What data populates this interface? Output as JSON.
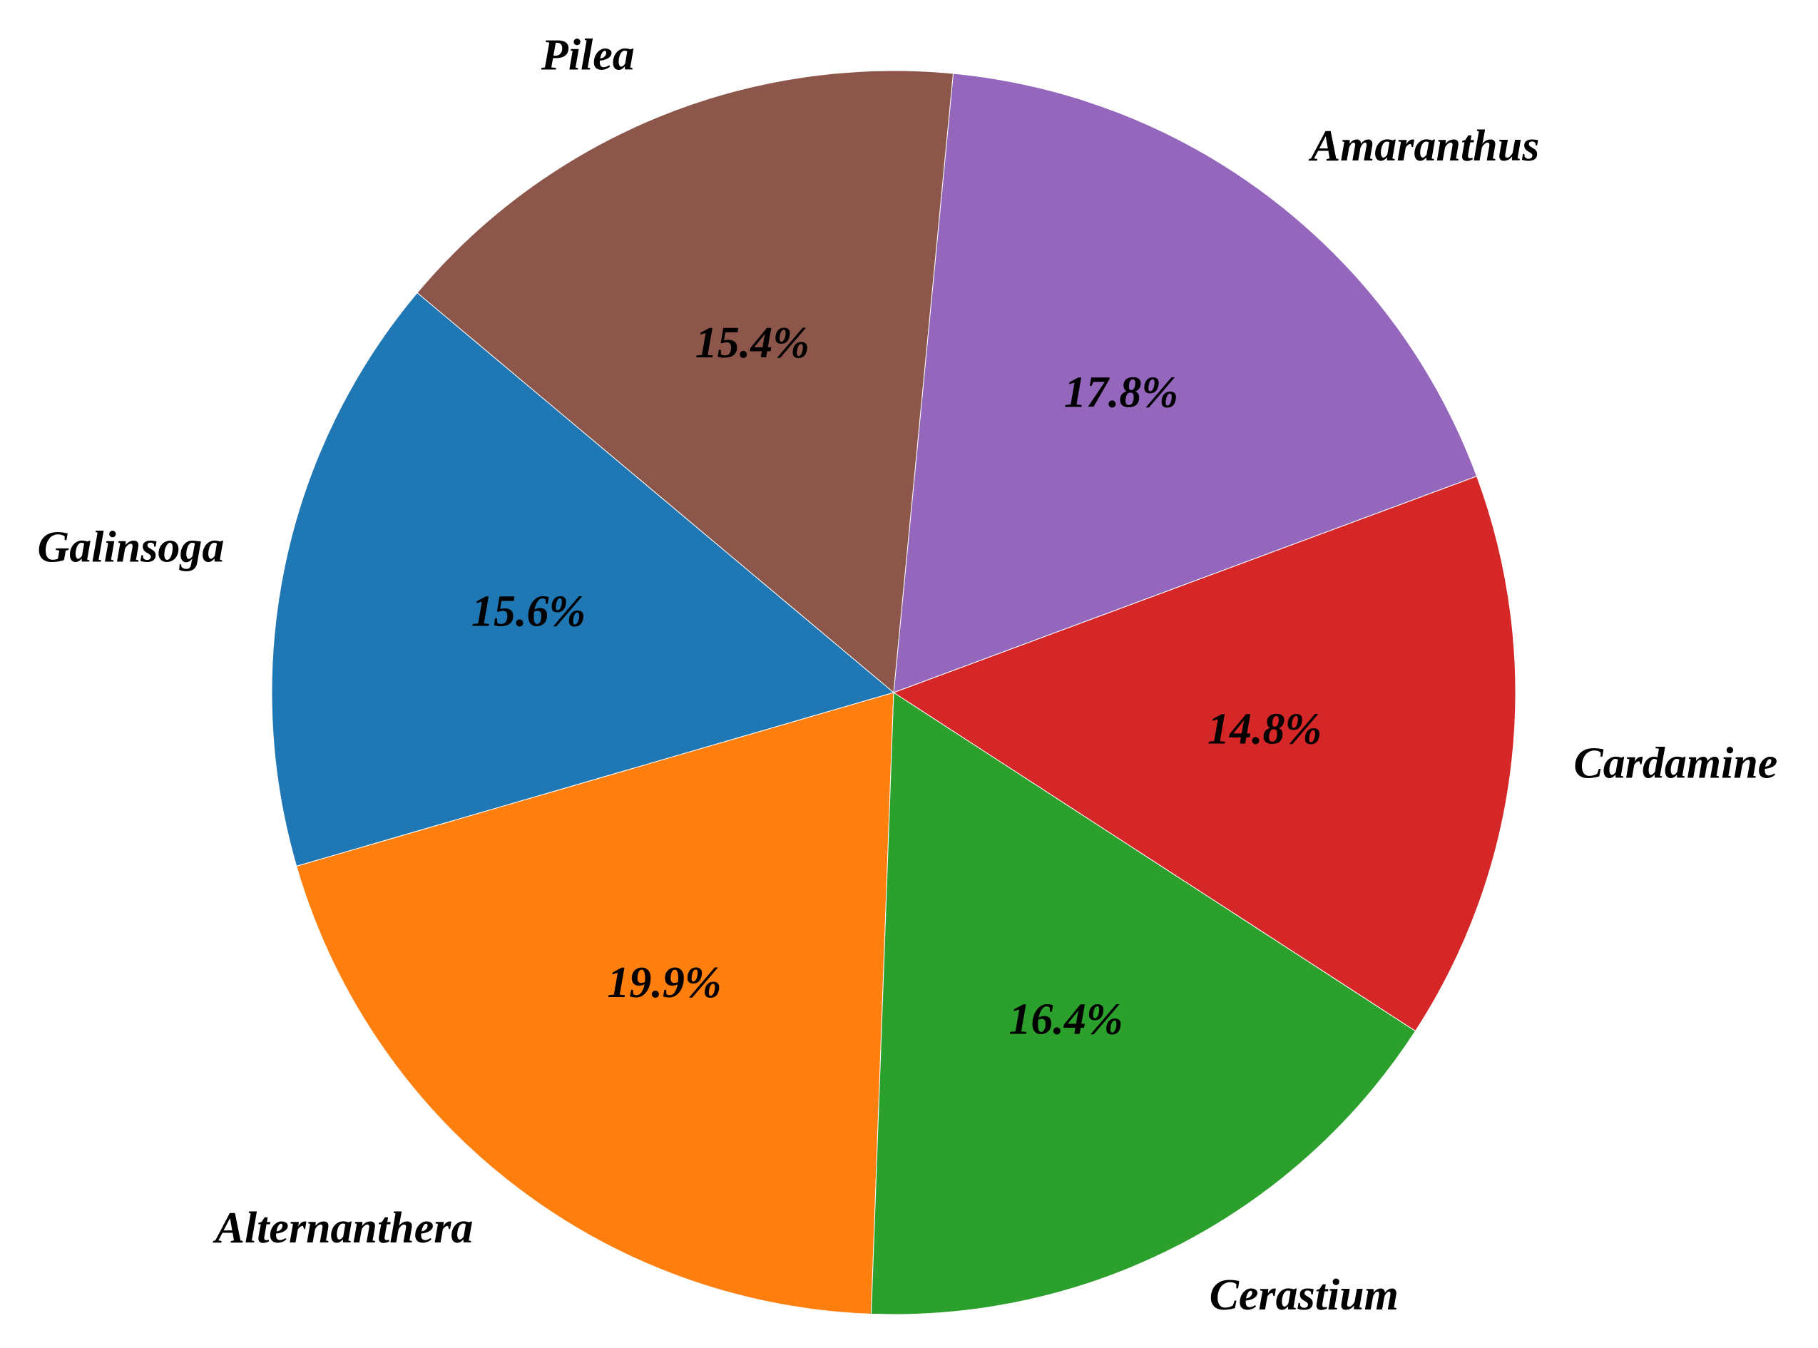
{
  "chart_data": {
    "type": "pie",
    "categories": [
      "Galinsoga",
      "Alternanthera",
      "Cerastium",
      "Cardamine",
      "Amaranthus",
      "Pilea"
    ],
    "values": [
      15.6,
      19.9,
      16.4,
      14.8,
      17.8,
      15.4
    ],
    "value_labels": [
      "15.6%",
      "19.9%",
      "16.4%",
      "14.8%",
      "17.8%",
      "15.4%"
    ],
    "colors": [
      "#1f77b4",
      "#ff7f0e",
      "#2ca02c",
      "#d62728",
      "#9467bd",
      "#8c564b"
    ]
  }
}
